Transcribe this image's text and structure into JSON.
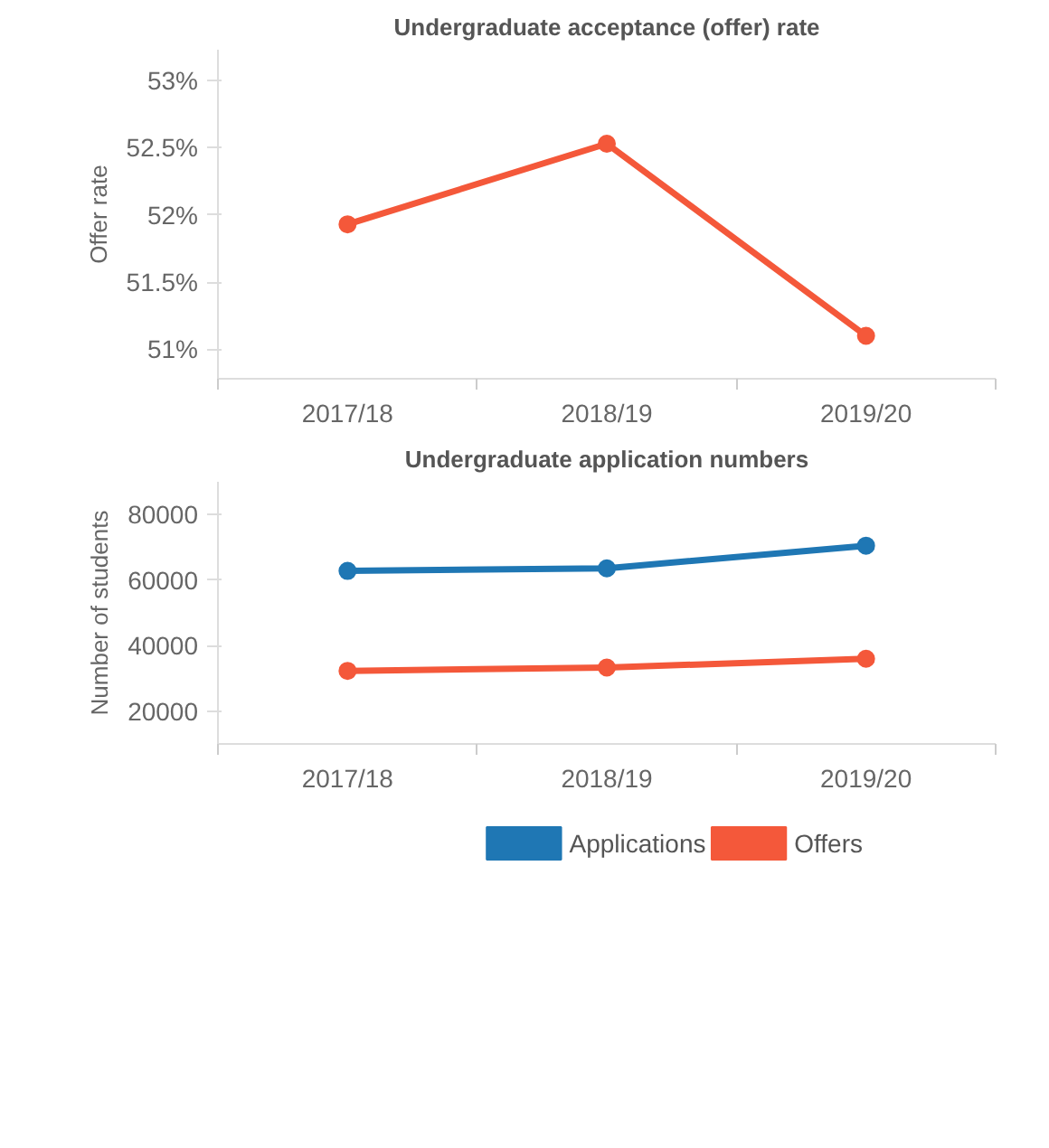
{
  "chart_data": [
    {
      "type": "line",
      "title": "Undergraduate acceptance (offer) rate",
      "ylabel": "Offer rate",
      "categories": [
        "2017/18",
        "2018/19",
        "2019/20"
      ],
      "series": [
        {
          "color": "#f4583a",
          "values": [
            51.93,
            52.53,
            51.1
          ]
        }
      ],
      "ylim": [
        50.78,
        53.23
      ],
      "yticks": [
        {
          "value": 51,
          "label": "51%"
        },
        {
          "value": 51.5,
          "label": "51.5%"
        },
        {
          "value": 52,
          "label": "52%"
        },
        {
          "value": 52.5,
          "label": "52.5%"
        },
        {
          "value": 53,
          "label": "53%"
        }
      ],
      "marker": "circle",
      "line_style": "solid"
    },
    {
      "type": "line",
      "title": "Undergraduate application numbers",
      "ylabel": "Number of students",
      "categories": [
        "2017/18",
        "2018/19",
        "2019/20"
      ],
      "series": [
        {
          "name": "Applications",
          "color": "#1f77b4",
          "values": [
            62800,
            63600,
            70500
          ]
        },
        {
          "name": "Offers",
          "color": "#f4583a",
          "values": [
            32300,
            33300,
            36000
          ]
        }
      ],
      "ylim": [
        10000,
        90000
      ],
      "yticks": [
        20000,
        40000,
        60000,
        80000
      ],
      "legend": "bottom",
      "marker": "circle",
      "line_style": "solid"
    }
  ]
}
